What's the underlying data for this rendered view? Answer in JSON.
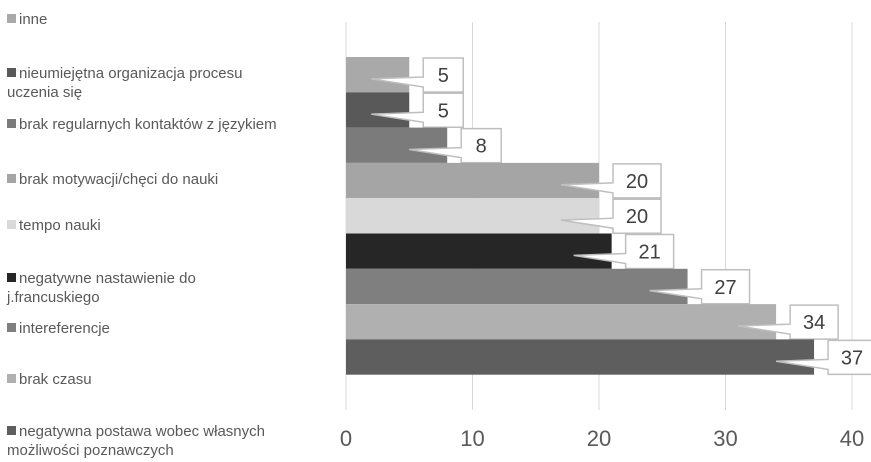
{
  "chart_data": {
    "type": "bar",
    "orientation": "horizontal",
    "categories": [
      "inne",
      "nieumiejętna organizacja procesu uczenia się",
      "brak regularnych kontaktów z językiem",
      "brak motywacji/chęci do nauki",
      "tempo nauki",
      "negatywne nastawienie do j.francuskiego",
      "intereferencje",
      "brak czasu",
      "negatywna postawa wobec własnych możliwości poznawczych"
    ],
    "legend_lines": [
      [
        "inne"
      ],
      [
        "nieumiejętna organizacja procesu",
        "uczenia się"
      ],
      [
        "brak regularnych kontaktów z językiem"
      ],
      [
        "brak motywacji/chęci do nauki"
      ],
      [
        "tempo nauki"
      ],
      [
        "negatywne nastawienie do",
        "j.francuskiego"
      ],
      [
        "intereferencje"
      ],
      [
        "brak czasu"
      ],
      [
        "negatywna postawa wobec własnych",
        "możliwości poznawczych"
      ]
    ],
    "values": [
      5,
      5,
      8,
      20,
      20,
      21,
      27,
      34,
      37
    ],
    "colors": [
      "#a9a9a9",
      "#595959",
      "#7b7b7b",
      "#a5a5a5",
      "#d9d9d9",
      "#262626",
      "#7f7f7f",
      "#b0b0b0",
      "#5e5e5e"
    ],
    "xlim": [
      0,
      40
    ],
    "xticks": [
      0,
      10,
      20,
      30,
      40
    ],
    "grid": true,
    "legend_position": "left",
    "data_labels": "callouts",
    "title": "",
    "xlabel": "",
    "ylabel": ""
  }
}
